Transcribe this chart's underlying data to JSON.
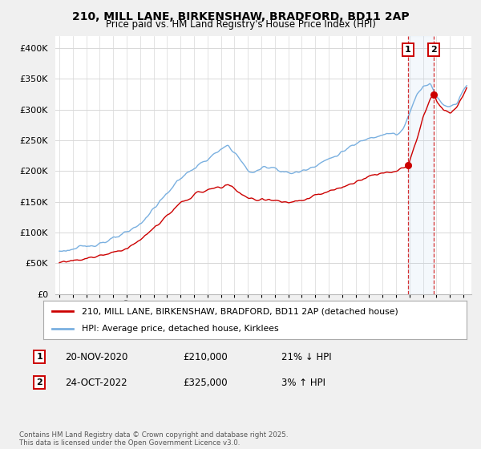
{
  "title1": "210, MILL LANE, BIRKENSHAW, BRADFORD, BD11 2AP",
  "title2": "Price paid vs. HM Land Registry's House Price Index (HPI)",
  "ylabel_ticks": [
    "£0",
    "£50K",
    "£100K",
    "£150K",
    "£200K",
    "£250K",
    "£300K",
    "£350K",
    "£400K"
  ],
  "ytick_values": [
    0,
    50000,
    100000,
    150000,
    200000,
    250000,
    300000,
    350000,
    400000
  ],
  "ylim": [
    0,
    420000
  ],
  "hpi_color": "#7ab0e0",
  "price_color": "#cc0000",
  "t1": 2020.875,
  "t2": 2022.79,
  "marker1_price": 210000,
  "marker2_price": 325000,
  "legend1": "210, MILL LANE, BIRKENSHAW, BRADFORD, BD11 2AP (detached house)",
  "legend2": "HPI: Average price, detached house, Kirklees",
  "note1_box": "1",
  "note1_date": "20-NOV-2020",
  "note1_price": "£210,000",
  "note1_hpi": "21% ↓ HPI",
  "note2_box": "2",
  "note2_date": "24-OCT-2022",
  "note2_price": "£325,000",
  "note2_hpi": "3% ↑ HPI",
  "footer": "Contains HM Land Registry data © Crown copyright and database right 2025.\nThis data is licensed under the Open Government Licence v3.0.",
  "background_color": "#f0f0f0",
  "plot_bg_color": "#ffffff"
}
